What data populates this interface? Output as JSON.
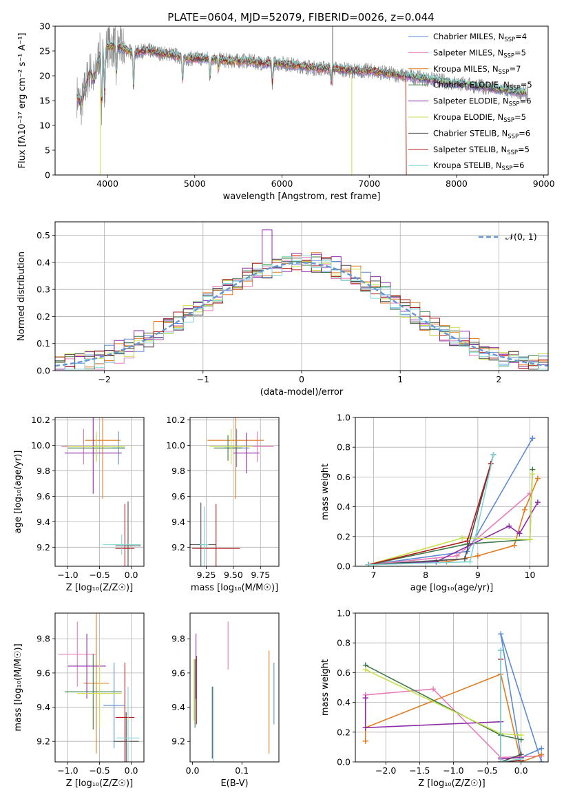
{
  "title": "PLATE=0604, MJD=52079, FIBERID=0026, z=0.044",
  "colors": {
    "Chabrier MILES": "#5b8bd6",
    "Salpeter MILES": "#e87ab8",
    "Kroupa MILES": "#e07b1f",
    "Chabrier ELODIE": "#3d7a4a",
    "Salpeter ELODIE": "#8e2aa8",
    "Kroupa ELODIE": "#c8e04a",
    "Chabrier STELIB": "#4a4a4a",
    "Salpeter STELIB": "#b01c1c",
    "Kroupa STELIB": "#7fd6d6"
  },
  "chart_data": [
    {
      "id": "spectrum",
      "type": "line",
      "title": "PLATE=0604, MJD=52079, FIBERID=0026, z=0.044",
      "xlabel": "wavelength [Angstrom, rest frame]",
      "ylabel": "Flux [fλ10⁻¹⁷ erg cm⁻² s⁻¹ A⁻¹]",
      "xlim": [
        3400,
        9050
      ],
      "ylim": [
        0,
        30
      ],
      "xticks": [
        4000,
        5000,
        6000,
        7000,
        8000,
        9000
      ],
      "yticks": [
        0,
        5,
        10,
        15,
        20,
        25,
        30
      ],
      "legend_position": "upper-right",
      "legend": [
        {
          "label": "Chabrier MILES, N",
          "sub": "SSP",
          "post": "=4"
        },
        {
          "label": "Salpeter MILES, N",
          "sub": "SSP",
          "post": "=5"
        },
        {
          "label": "Kroupa MILES, N",
          "sub": "SSP",
          "post": "=7"
        },
        {
          "label": "Chabrier ELODIE, N",
          "sub": "SSP",
          "post": "=5"
        },
        {
          "label": "Salpeter ELODIE, N",
          "sub": "SSP",
          "post": "=6"
        },
        {
          "label": "Kroupa ELODIE, N",
          "sub": "SSP",
          "post": "=5"
        },
        {
          "label": "Chabrier STELIB, N",
          "sub": "SSP",
          "post": "=6"
        },
        {
          "label": "Salpeter STELIB, N",
          "sub": "SSP",
          "post": "=5"
        },
        {
          "label": "Kroupa STELIB, N",
          "sub": "SSP",
          "post": "=6"
        }
      ],
      "data_trend": {
        "x": [
          3650,
          3700,
          3750,
          3800,
          3850,
          3900,
          3950,
          4000,
          4100,
          4200,
          4300,
          4400,
          4500,
          4600,
          4700,
          4800,
          4900,
          5000,
          5200,
          5400,
          5600,
          5800,
          6000,
          6200,
          6400,
          6600,
          6800,
          7000,
          7200,
          7400,
          7600,
          7800,
          8000,
          8200,
          8400,
          8600,
          8800
        ],
        "y": [
          16,
          14,
          18,
          21,
          19,
          24,
          25,
          26,
          26,
          25.5,
          24.5,
          25,
          25,
          24.5,
          24.5,
          24,
          23.5,
          23.5,
          23.5,
          23,
          23,
          22.5,
          22.5,
          22,
          21.5,
          21.5,
          21,
          21,
          20.5,
          20,
          19.5,
          19,
          18.5,
          18,
          17.5,
          17,
          16.5
        ]
      },
      "features": [
        {
          "x": 3934,
          "depth": 12
        },
        {
          "x": 3969,
          "depth": 9
        },
        {
          "x": 4102,
          "depth": 6
        },
        {
          "x": 4300,
          "depth": 7
        },
        {
          "x": 4861,
          "depth": 5
        },
        {
          "x": 5175,
          "depth": 4
        },
        {
          "x": 5270,
          "depth": 2
        },
        {
          "x": 5890,
          "depth": 4
        },
        {
          "x": 6563,
          "depth": 3
        }
      ]
    },
    {
      "id": "residual_hist",
      "type": "histogram",
      "xlabel": "(data-model)/error",
      "ylabel": "Normed distribution",
      "xlim": [
        -2.5,
        2.5
      ],
      "ylim": [
        0,
        0.55
      ],
      "xticks": [
        -2,
        -1,
        0,
        1,
        2
      ],
      "yticks": [
        0.0,
        0.1,
        0.2,
        0.3,
        0.4,
        0.5
      ],
      "grid": true,
      "legend_position": "upper-right",
      "reference_label": "𝒩(0, 1)",
      "bin_width": 0.1,
      "series_offsets": [
        0.012,
        -0.018,
        0.022,
        -0.008,
        0.03,
        0.018,
        -0.02,
        0.01,
        -0.012
      ]
    },
    {
      "id": "age_vs_Z",
      "type": "errorbar",
      "xlabel": "Z [log₁₀(Z/Z☉)]",
      "ylabel": "age  [log₁₀(age/yr)]",
      "xlim": [
        -1.2,
        0.2
      ],
      "ylim": [
        9.05,
        10.22
      ],
      "xticks": [
        -1.0,
        -0.5,
        0.0
      ],
      "yticks": [
        9.2,
        9.4,
        9.6,
        9.8,
        10.0,
        10.2
      ],
      "grid": true,
      "points": [
        {
          "series": "Chabrier MILES",
          "x": -0.2,
          "xerr": 0.1,
          "y": 9.98,
          "yerr": 0.13
        },
        {
          "series": "Salpeter MILES",
          "x": -0.75,
          "xerr": 0.35,
          "y": 9.99,
          "yerr": 0.14
        },
        {
          "series": "Kroupa MILES",
          "x": -0.45,
          "xerr": 0.28,
          "y": 10.04,
          "yerr": 0.46
        },
        {
          "series": "Chabrier ELODIE",
          "x": -0.55,
          "xerr": 0.45,
          "y": 9.98,
          "yerr": 0.1
        },
        {
          "series": "Salpeter ELODIE",
          "x": -0.6,
          "xerr": 0.45,
          "y": 9.94,
          "yerr": 0.32
        },
        {
          "series": "Kroupa ELODIE",
          "x": -0.55,
          "xerr": 0.45,
          "y": 9.99,
          "yerr": 0.12
        },
        {
          "series": "Chabrier STELIB",
          "x": -0.05,
          "xerr": 0.2,
          "y": 9.21,
          "yerr": 0.35
        },
        {
          "series": "Salpeter STELIB",
          "x": -0.1,
          "xerr": 0.15,
          "y": 9.19,
          "yerr": 0.35
        },
        {
          "series": "Kroupa STELIB",
          "x": -0.15,
          "xerr": 0.3,
          "y": 9.22,
          "yerr": 0.08
        }
      ]
    },
    {
      "id": "age_vs_mass",
      "type": "errorbar",
      "xlabel": "mass [log₁₀(M/M☉)]",
      "ylabel": "",
      "xlim": [
        9.1,
        9.92
      ],
      "ylim": [
        9.05,
        10.22
      ],
      "xticks": [
        9.25,
        9.5,
        9.75
      ],
      "yticks": [
        9.2,
        9.4,
        9.6,
        9.8,
        10.0,
        10.2
      ],
      "grid": true,
      "points": [
        {
          "series": "Chabrier MILES",
          "x": 9.53,
          "xerr": 0.12,
          "y": 9.98,
          "yerr": 0.15
        },
        {
          "series": "Salpeter MILES",
          "x": 9.72,
          "xerr": 0.15,
          "y": 9.99,
          "yerr": 0.12
        },
        {
          "series": "Kroupa MILES",
          "x": 9.52,
          "xerr": 0.26,
          "y": 10.04,
          "yerr": 0.46
        },
        {
          "series": "Chabrier ELODIE",
          "x": 9.45,
          "xerr": 0.13,
          "y": 9.98,
          "yerr": 0.1
        },
        {
          "series": "Salpeter ELODIE",
          "x": 9.62,
          "xerr": 0.12,
          "y": 9.94,
          "yerr": 0.16
        },
        {
          "series": "Kroupa ELODIE",
          "x": 9.48,
          "xerr": 0.2,
          "y": 9.99,
          "yerr": 0.14
        },
        {
          "series": "Chabrier STELIB",
          "x": 9.2,
          "xerr": 0.14,
          "y": 9.22,
          "yerr": 0.33
        },
        {
          "series": "Salpeter STELIB",
          "x": 9.34,
          "xerr": 0.22,
          "y": 9.19,
          "yerr": 0.35
        },
        {
          "series": "Kroupa STELIB",
          "x": 9.23,
          "xerr": 0.04,
          "y": 9.22,
          "yerr": 0.3
        }
      ]
    },
    {
      "id": "mass_weight_vs_age",
      "type": "line",
      "xlabel": "age  [log₁₀(age/yr)]",
      "ylabel": "mass weight",
      "xlim": [
        6.65,
        10.35
      ],
      "ylim": [
        0,
        1.0
      ],
      "xticks": [
        7,
        8,
        9,
        10
      ],
      "yticks": [
        0.0,
        0.2,
        0.4,
        0.6,
        0.8,
        1.0
      ],
      "grid": true,
      "series": [
        {
          "name": "Chabrier MILES",
          "x": [
            6.9,
            8.8,
            10.05
          ],
          "y": [
            0.01,
            0.1,
            0.86
          ]
        },
        {
          "name": "Salpeter MILES",
          "x": [
            6.9,
            8.6,
            10.0
          ],
          "y": [
            0.01,
            0.07,
            0.49
          ]
        },
        {
          "name": "Kroupa MILES",
          "x": [
            6.9,
            8.4,
            9.0,
            9.7,
            9.9,
            10.15
          ],
          "y": [
            0.01,
            0.03,
            0.07,
            0.14,
            0.38,
            0.59
          ]
        },
        {
          "name": "Chabrier ELODIE",
          "x": [
            6.9,
            8.8,
            10.0,
            10.05
          ],
          "y": [
            0.01,
            0.15,
            0.18,
            0.65
          ]
        },
        {
          "name": "Salpeter ELODIE",
          "x": [
            6.9,
            8.2,
            9.6,
            9.8,
            10.15
          ],
          "y": [
            0.01,
            0.03,
            0.27,
            0.22,
            0.43
          ]
        },
        {
          "name": "Kroupa ELODIE",
          "x": [
            6.9,
            8.7,
            10.0,
            10.05
          ],
          "y": [
            0.01,
            0.19,
            0.18,
            0.62
          ]
        },
        {
          "name": "Chabrier STELIB",
          "x": [
            6.9,
            8.75,
            9.3
          ],
          "y": [
            0.01,
            0.05,
            0.75
          ]
        },
        {
          "name": "Salpeter STELIB",
          "x": [
            6.9,
            8.8,
            9.25
          ],
          "y": [
            0.01,
            0.17,
            0.69
          ]
        },
        {
          "name": "Kroupa STELIB",
          "x": [
            6.9,
            8.85,
            9.3
          ],
          "y": [
            0.01,
            0.03,
            0.75
          ]
        }
      ]
    },
    {
      "id": "mass_vs_Z",
      "type": "errorbar",
      "xlabel": "Z [log₁₀(Z/Z☉)]",
      "ylabel": "mass [log₁₀(M/M☉)]",
      "xlim": [
        -1.2,
        0.2
      ],
      "ylim": [
        9.08,
        9.95
      ],
      "xticks": [
        -1.0,
        -0.5,
        0.0
      ],
      "yticks": [
        9.2,
        9.4,
        9.6,
        9.8
      ],
      "grid": true,
      "points": [
        {
          "series": "Chabrier MILES",
          "x": -0.27,
          "xerr": 0.17,
          "y": 9.41,
          "yerr": 0.25
        },
        {
          "series": "Salpeter MILES",
          "x": -0.85,
          "xerr": 0.3,
          "y": 9.71,
          "yerr": 0.19
        },
        {
          "series": "Kroupa MILES",
          "x": -0.55,
          "xerr": 0.2,
          "y": 9.54,
          "yerr": 0.41
        },
        {
          "series": "Chabrier ELODIE",
          "x": -0.6,
          "xerr": 0.45,
          "y": 9.49,
          "yerr": 0.22
        },
        {
          "series": "Salpeter ELODIE",
          "x": -0.7,
          "xerr": 0.3,
          "y": 9.64,
          "yerr": 0.19
        },
        {
          "series": "Kroupa ELODIE",
          "x": -0.5,
          "xerr": 0.35,
          "y": 9.48,
          "yerr": 0.2
        },
        {
          "series": "Chabrier STELIB",
          "x": -0.08,
          "xerr": 0.2,
          "y": 9.2,
          "yerr": 0.17
        },
        {
          "series": "Salpeter STELIB",
          "x": -0.1,
          "xerr": 0.15,
          "y": 9.34,
          "yerr": 0.32
        },
        {
          "series": "Kroupa STELIB",
          "x": -0.05,
          "xerr": 0.18,
          "y": 9.22,
          "yerr": 0.3
        }
      ]
    },
    {
      "id": "mass_vs_EBV",
      "type": "errorbar",
      "xlabel": "E(B-V)",
      "ylabel": "",
      "xlim": [
        -0.005,
        0.175
      ],
      "ylim": [
        9.08,
        9.95
      ],
      "xticks": [
        0.0,
        0.1
      ],
      "yticks": [
        9.2,
        9.4,
        9.6,
        9.8
      ],
      "grid": false,
      "points": [
        {
          "series": "Chabrier MILES",
          "x": 0.165,
          "y": 9.48,
          "yerr": 0.18
        },
        {
          "series": "Salpeter MILES",
          "x": 0.072,
          "y": 9.76,
          "yerr": 0.14
        },
        {
          "series": "Kroupa MILES",
          "x": 0.155,
          "y": 9.43,
          "yerr": 0.3
        },
        {
          "series": "Chabrier ELODIE",
          "x": 0.005,
          "y": 9.48,
          "yerr": 0.2
        },
        {
          "series": "Salpeter ELODIE",
          "x": 0.007,
          "y": 9.64,
          "yerr": 0.19
        },
        {
          "series": "Kroupa ELODIE",
          "x": 0.003,
          "y": 9.5,
          "yerr": 0.18
        },
        {
          "series": "Chabrier STELIB",
          "x": 0.04,
          "y": 9.31,
          "yerr": 0.21
        },
        {
          "series": "Salpeter STELIB",
          "x": 0.008,
          "y": 9.5,
          "yerr": 0.2
        },
        {
          "series": "Kroupa STELIB",
          "x": 0.042,
          "y": 9.3,
          "yerr": 0.22
        }
      ]
    },
    {
      "id": "mass_weight_vs_Z",
      "type": "line",
      "xlabel": "Z [log₁₀(Z/Z☉)]",
      "ylabel": "mass weight",
      "xlim": [
        -2.45,
        0.4
      ],
      "ylim": [
        0,
        1.0
      ],
      "xticks": [
        -2.0,
        -1.5,
        -1.0,
        -0.5,
        0.0
      ],
      "yticks": [
        0.0,
        0.2,
        0.4,
        0.6,
        0.8,
        1.0
      ],
      "grid": true,
      "series": [
        {
          "name": "Chabrier MILES",
          "x": [
            0.3,
            0.0,
            -0.3,
            0.3
          ],
          "y": [
            0.09,
            0.03,
            0.86,
            0.0
          ]
        },
        {
          "name": "Salpeter MILES",
          "x": [
            -2.3,
            -1.3,
            -0.3,
            0.3
          ],
          "y": [
            0.45,
            0.49,
            0.03,
            0.04
          ]
        },
        {
          "name": "Kroupa MILES",
          "x": [
            -2.3,
            -2.3,
            -0.3,
            0.0,
            0.3
          ],
          "y": [
            0.14,
            0.23,
            0.59,
            0.0,
            0.05
          ]
        },
        {
          "name": "Chabrier ELODIE",
          "x": [
            -2.3,
            -0.3,
            0.0
          ],
          "y": [
            0.65,
            0.18,
            0.15
          ]
        },
        {
          "name": "Salpeter ELODIE",
          "x": [
            -2.3,
            -2.3,
            -0.3,
            -0.3,
            0.0
          ],
          "y": [
            0.43,
            0.23,
            0.27,
            0.02,
            0.03
          ]
        },
        {
          "name": "Kroupa ELODIE",
          "x": [
            -2.3,
            -0.3,
            0.0
          ],
          "y": [
            0.62,
            0.19,
            0.18
          ]
        },
        {
          "name": "Chabrier STELIB",
          "x": [
            -0.3,
            -0.3,
            0.0
          ],
          "y": [
            0.75,
            0.0,
            0.05
          ]
        },
        {
          "name": "Salpeter STELIB",
          "x": [
            -0.3,
            -0.3,
            0.0
          ],
          "y": [
            0.69,
            0.0,
            0.01
          ]
        },
        {
          "name": "Kroupa STELIB",
          "x": [
            -0.3,
            -0.3,
            0.0
          ],
          "y": [
            0.75,
            0.0,
            0.02
          ]
        }
      ]
    }
  ]
}
